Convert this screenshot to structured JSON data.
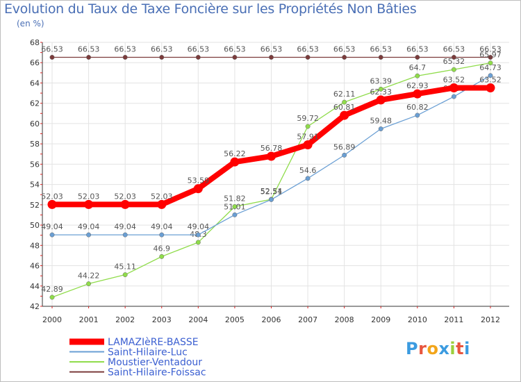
{
  "chart_data": {
    "type": "line",
    "title": "Evolution du Taux de Taxe Foncière sur les Propriétés Non Bâties",
    "ylabel": "(en %)",
    "xlabel": "",
    "x": [
      "2000",
      "2001",
      "2002",
      "2003",
      "2004",
      "2005",
      "2006",
      "2007",
      "2008",
      "2009",
      "2010",
      "2011",
      "2012"
    ],
    "ylim": [
      42,
      68
    ],
    "yticks": [
      42,
      44,
      46,
      48,
      50,
      52,
      54,
      56,
      58,
      60,
      62,
      64,
      66,
      68
    ],
    "grid": true,
    "series": [
      {
        "name": "Saint-Hilaire-Foissac",
        "color": "#7b3b3b",
        "values": [
          66.53,
          66.53,
          66.53,
          66.53,
          66.53,
          66.53,
          66.53,
          66.53,
          66.53,
          66.53,
          66.53,
          66.53,
          66.53
        ],
        "labels": [
          "66.53",
          "66.53",
          "66.53",
          "66.53",
          "66.53",
          "66.53",
          "66.53",
          "66.53",
          "66.53",
          "66.53",
          "66.53",
          "66.53",
          "66.53"
        ]
      },
      {
        "name": "Moustier-Ventadour",
        "color": "#8fdc4a",
        "values": [
          42.89,
          44.22,
          45.11,
          46.9,
          48.3,
          51.82,
          52.54,
          59.72,
          62.11,
          63.39,
          64.7,
          65.32,
          65.97
        ],
        "labels": [
          "42.89",
          "44.22",
          "45.11",
          "46.9",
          "48.3",
          "51.82",
          "52.54",
          "59.72",
          "62.11",
          "63.39",
          "64.7",
          "65.32",
          "65.97"
        ]
      },
      {
        "name": "Saint-Hilaire-Luc",
        "color": "#6a9fd4",
        "values": [
          49.04,
          49.04,
          49.04,
          49.04,
          49.04,
          51.01,
          52.51,
          54.6,
          56.89,
          59.48,
          60.82,
          62.66,
          64.73
        ],
        "labels": [
          "49.04",
          "49.04",
          "49.04",
          "49.04",
          "49.04",
          "51.01",
          "52.51",
          "54.6",
          "56.89",
          "59.48",
          "60.82",
          "62.66",
          "64.73"
        ]
      },
      {
        "name": "LAMAZIèRE-BASSE",
        "color": "#ff0000",
        "values": [
          52.03,
          52.03,
          52.03,
          52.03,
          53.59,
          56.22,
          56.78,
          57.91,
          60.81,
          62.33,
          62.93,
          63.52,
          63.52
        ],
        "labels": [
          "52.03",
          "52.03",
          "52.03",
          "52.03",
          "53.59",
          "56.22",
          "56.78",
          "57.91",
          "60.81",
          "62.33",
          "62.93",
          "63.52",
          "63.52"
        ]
      }
    ],
    "legend_order": [
      "LAMAZIèRE-BASSE",
      "Saint-Hilaire-Luc",
      "Moustier-Ventadour",
      "Saint-Hilaire-Foissac"
    ],
    "legend_position": "bottom-left"
  },
  "logo": {
    "text": "Proxiti",
    "letters": [
      "P",
      "r",
      "o",
      "x",
      "i",
      "t",
      "i"
    ],
    "colors": [
      "#3b9be0",
      "#e8563f",
      "#f2a51a",
      "#3b9be0",
      "#9ccf3c",
      "#e8563f",
      "#3b9be0"
    ]
  }
}
